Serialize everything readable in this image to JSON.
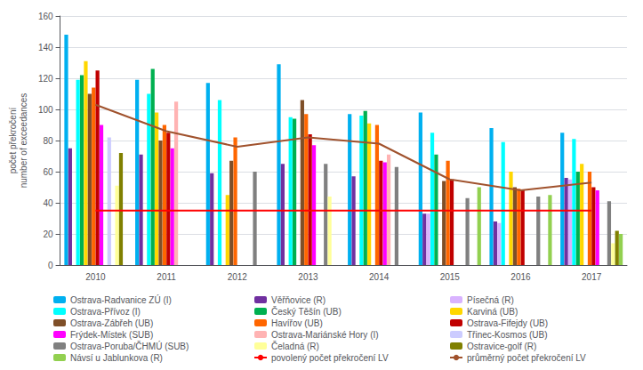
{
  "chart_data": {
    "type": "bar",
    "ylabel": "počet překročení\nnumber of exceedances",
    "categories": [
      "2010",
      "2011",
      "2012",
      "2013",
      "2014",
      "2015",
      "2016",
      "2017"
    ],
    "series": [
      {
        "name": "Ostrava-Radvanice ZÚ (I)",
        "color": "#00B0F0",
        "values": [
          148,
          119,
          117,
          129,
          97,
          98,
          88,
          85
        ]
      },
      {
        "name": "Věřňovice (R)",
        "color": "#7030A0",
        "values": [
          75,
          71,
          59,
          65,
          57,
          33,
          28,
          56
        ]
      },
      {
        "name": "Písečná (R)",
        "color": "#D9B3FF",
        "values": [
          null,
          null,
          null,
          null,
          null,
          33,
          27,
          55
        ]
      },
      {
        "name": "Ostrava-Přívoz (I)",
        "color": "#00FFFF",
        "values": [
          119,
          110,
          106,
          95,
          96,
          85,
          79,
          81
        ]
      },
      {
        "name": "Český Těšín (UB)",
        "color": "#00B050",
        "values": [
          122,
          126,
          null,
          94,
          99,
          71,
          null,
          60
        ]
      },
      {
        "name": "Karviná (UB)",
        "color": "#FFD700",
        "values": [
          131,
          98,
          45,
          null,
          91,
          null,
          60,
          65
        ]
      },
      {
        "name": "Ostrava-Zábřeh (UB)",
        "color": "#7F4F28",
        "values": [
          110,
          80,
          67,
          106,
          null,
          54,
          50,
          null
        ]
      },
      {
        "name": "Havířov (UB)",
        "color": "#FF6600",
        "values": [
          114,
          90,
          82,
          97,
          90,
          67,
          49,
          60
        ]
      },
      {
        "name": "Ostrava-Fifejdy (UB)",
        "color": "#C00000",
        "values": [
          125,
          85,
          null,
          84,
          67,
          55,
          48,
          50
        ]
      },
      {
        "name": "Frýdek-Místek (SUB)",
        "color": "#FF00FF",
        "values": [
          90,
          75,
          null,
          77,
          66,
          null,
          null,
          48
        ]
      },
      {
        "name": "Ostrava-Mariánské Hory (I)",
        "color": "#FFB3B3",
        "values": [
          null,
          105,
          null,
          null,
          71,
          null,
          null,
          null
        ]
      },
      {
        "name": "Třinec-Kosmos (UB)",
        "color": "#CCCCFF",
        "values": [
          82,
          null,
          null,
          null,
          null,
          null,
          null,
          null
        ]
      },
      {
        "name": "Ostrava-Poruba/ČHMÚ (SUB)",
        "color": "#808080",
        "values": [
          null,
          null,
          60,
          65,
          63,
          43,
          44,
          41
        ]
      },
      {
        "name": "Čeladná (R)",
        "color": "#FFFF99",
        "values": [
          51,
          null,
          null,
          44,
          null,
          null,
          null,
          14
        ]
      },
      {
        "name": "Ostravice-golf (R)",
        "color": "#808000",
        "values": [
          72,
          null,
          null,
          null,
          null,
          null,
          null,
          22
        ]
      },
      {
        "name": "Návsí u Jablunkova (R)",
        "color": "#92D050",
        "values": [
          null,
          null,
          null,
          null,
          null,
          50,
          45,
          20
        ]
      },
      {
        "name": "povolený počet překročení LV",
        "type": "line",
        "color": "#FF0000",
        "values": [
          35,
          35,
          35,
          35,
          35,
          35,
          35,
          35
        ]
      },
      {
        "name": "průměrný počet překročení LV",
        "type": "line",
        "color": "#A0522D",
        "values": [
          103,
          86,
          76,
          82,
          78,
          55,
          48,
          53
        ]
      }
    ],
    "ylim": [
      0,
      160
    ],
    "yticks": [
      0,
      20,
      40,
      60,
      80,
      100,
      120,
      140,
      160
    ],
    "grid": true,
    "legend": "bottom"
  }
}
